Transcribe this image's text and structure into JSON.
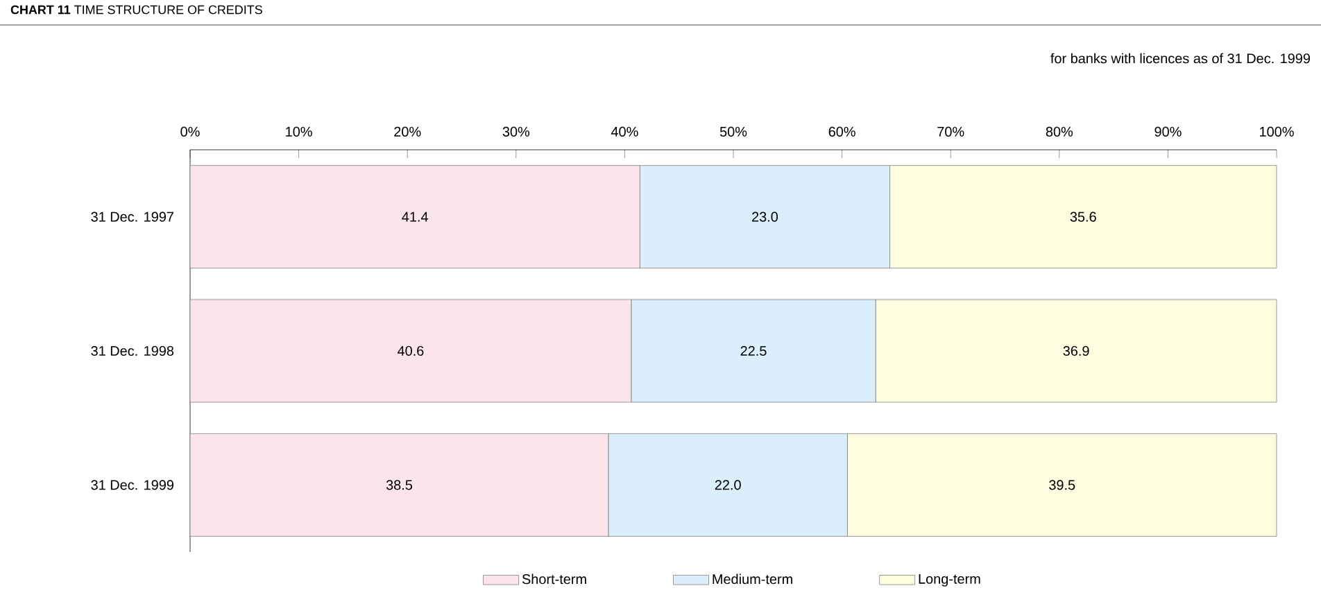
{
  "chart_data": {
    "type": "bar",
    "orientation": "horizontal",
    "stacked": true,
    "title": "**CHART 11** TIME STRUCTURE OF CREDITS",
    "subtitle": "for banks with licences as of 31 Dec. 1999",
    "categories": [
      "31 Dec. 1997",
      "31 Dec. 1998",
      "31 Dec. 1999"
    ],
    "series": [
      {
        "name": "Short-term",
        "color": "#fce4ec",
        "values": [
          41.4,
          40.6,
          38.5
        ],
        "value_labels": [
          "41.4",
          "40.6",
          "38.5"
        ]
      },
      {
        "name": "Medium-term",
        "color": "#dbeefb",
        "values": [
          23.0,
          22.5,
          22.0
        ],
        "value_labels": [
          "23.0",
          "22.5",
          "22.0"
        ]
      },
      {
        "name": "Long-term",
        "color": "#fefde0",
        "values": [
          35.6,
          36.9,
          39.5
        ],
        "value_labels": [
          "35.6",
          "36.9",
          "39.5"
        ]
      }
    ],
    "xlim": [
      0,
      100
    ],
    "xticks": [
      {
        "value": 0,
        "label": "0%"
      },
      {
        "value": 10,
        "label": "10%"
      },
      {
        "value": 20,
        "label": "20%"
      },
      {
        "value": 30,
        "label": "30%"
      },
      {
        "value": 40,
        "label": "40%"
      },
      {
        "value": 50,
        "label": "50%"
      },
      {
        "value": 60,
        "label": "60%"
      },
      {
        "value": 70,
        "label": "70%"
      },
      {
        "value": 80,
        "label": "80%"
      },
      {
        "value": 90,
        "label": "90%"
      },
      {
        "value": 100,
        "label": "100%"
      }
    ],
    "legend": "bottom"
  }
}
